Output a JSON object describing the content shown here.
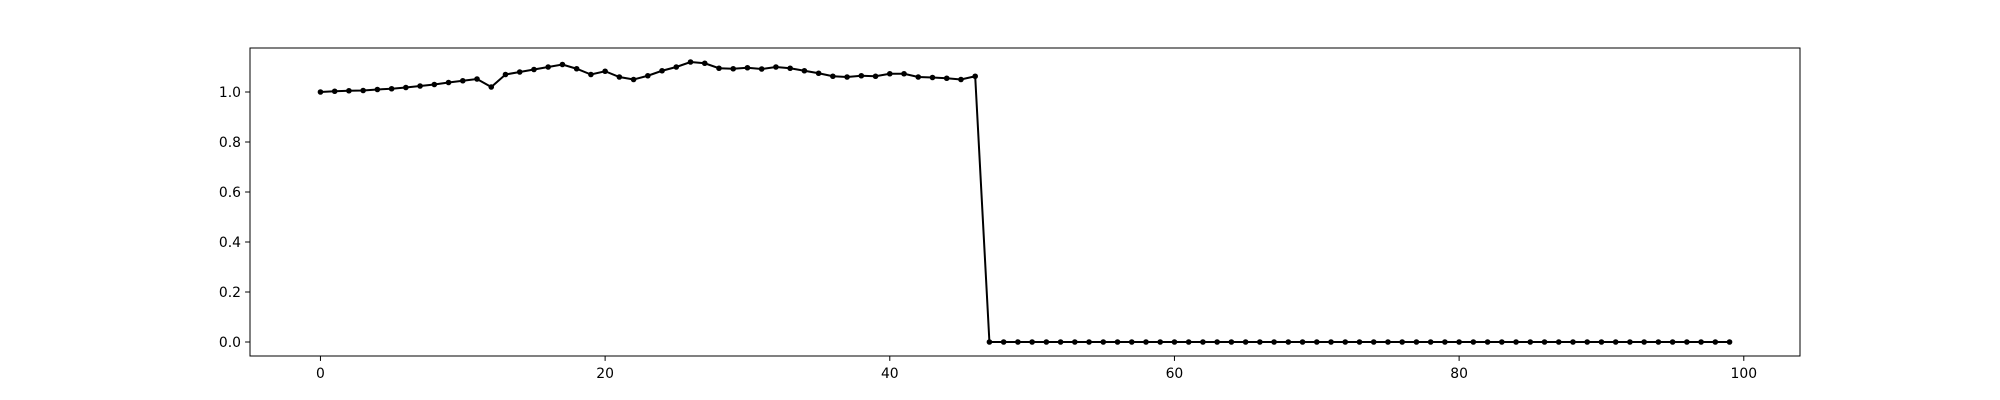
{
  "chart_data": {
    "type": "line",
    "x": [
      0,
      1,
      2,
      3,
      4,
      5,
      6,
      7,
      8,
      9,
      10,
      11,
      12,
      13,
      14,
      15,
      16,
      17,
      18,
      19,
      20,
      21,
      22,
      23,
      24,
      25,
      26,
      27,
      28,
      29,
      30,
      31,
      32,
      33,
      34,
      35,
      36,
      37,
      38,
      39,
      40,
      41,
      42,
      43,
      44,
      45,
      46,
      47,
      48,
      49,
      50,
      51,
      52,
      53,
      54,
      55,
      56,
      57,
      58,
      59,
      60,
      61,
      62,
      63,
      64,
      65,
      66,
      67,
      68,
      69,
      70,
      71,
      72,
      73,
      74,
      75,
      76,
      77,
      78,
      79,
      80,
      81,
      82,
      83,
      84,
      85,
      86,
      87,
      88,
      89,
      90,
      91,
      92,
      93,
      94,
      95,
      96,
      97,
      98,
      99
    ],
    "values": [
      1.0,
      1.003,
      1.005,
      1.006,
      1.01,
      1.013,
      1.018,
      1.024,
      1.03,
      1.038,
      1.045,
      1.052,
      1.02,
      1.07,
      1.08,
      1.09,
      1.1,
      1.11,
      1.093,
      1.07,
      1.083,
      1.06,
      1.05,
      1.065,
      1.085,
      1.1,
      1.12,
      1.115,
      1.095,
      1.093,
      1.097,
      1.092,
      1.1,
      1.095,
      1.085,
      1.075,
      1.063,
      1.06,
      1.065,
      1.063,
      1.073,
      1.073,
      1.06,
      1.058,
      1.055,
      1.05,
      1.063,
      0,
      0,
      0,
      0,
      0,
      0,
      0,
      0,
      0,
      0,
      0,
      0,
      0,
      0,
      0,
      0,
      0,
      0,
      0,
      0,
      0,
      0,
      0,
      0,
      0,
      0,
      0,
      0,
      0,
      0,
      0,
      0,
      0,
      0,
      0,
      0,
      0,
      0,
      0,
      0,
      0,
      0,
      0,
      0,
      0,
      0,
      0,
      0,
      0,
      0,
      0,
      0,
      0
    ],
    "color": "#000000",
    "xlim": [
      -4.95,
      103.95
    ],
    "xticks": [
      0,
      20,
      40,
      60,
      80,
      100
    ],
    "ylim": [
      -0.056,
      1.176
    ],
    "yticks": [
      {
        "value": 0,
        "label": "0.0"
      },
      {
        "value": 0.2,
        "label": "0.2"
      },
      {
        "value": 0.4,
        "label": "0.4"
      },
      {
        "value": 0.6,
        "label": "0.6"
      },
      {
        "value": 0.8,
        "label": "0.8"
      },
      {
        "value": 1.0,
        "label": "1.0"
      }
    ],
    "grid": false
  }
}
